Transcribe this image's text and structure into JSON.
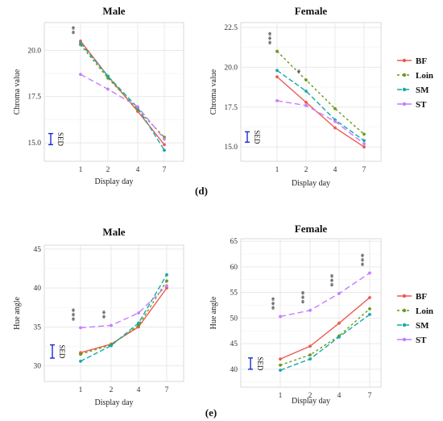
{
  "chart_data": [
    {
      "type": "line",
      "title": "Male",
      "xlabel": "Display day",
      "ylabel": "Chroma value",
      "categories": [
        "1",
        "2",
        "4",
        "7"
      ],
      "ylim": [
        14,
        21.5
      ],
      "yticks": [
        "15.0",
        "17.5",
        "20.0"
      ],
      "series": [
        {
          "name": "BF",
          "values": [
            20.5,
            18.6,
            16.7,
            14.9
          ]
        },
        {
          "name": "Loin",
          "values": [
            20.3,
            18.5,
            16.8,
            15.3
          ]
        },
        {
          "name": "SM",
          "values": [
            20.4,
            18.6,
            16.9,
            14.6
          ]
        },
        {
          "name": "ST",
          "values": [
            18.7,
            17.9,
            16.95,
            15.2
          ]
        }
      ],
      "sed_label": "SED",
      "sed_range": [
        14.9,
        15.5
      ],
      "stars": [
        {
          "x": "1",
          "text": "**"
        }
      ]
    },
    {
      "type": "line",
      "title": "Female",
      "xlabel": "Display day",
      "ylabel": "Chroma value",
      "categories": [
        "1",
        "2",
        "4",
        "7"
      ],
      "ylim": [
        14.1,
        22.8
      ],
      "yticks": [
        "15.0",
        "17.5",
        "20.0",
        "22.5"
      ],
      "series": [
        {
          "name": "BF",
          "values": [
            19.4,
            17.8,
            16.2,
            15.0
          ]
        },
        {
          "name": "Loin",
          "values": [
            21.0,
            19.2,
            17.4,
            15.8
          ]
        },
        {
          "name": "SM",
          "values": [
            19.8,
            18.5,
            16.7,
            15.4
          ]
        },
        {
          "name": "ST",
          "values": [
            17.9,
            17.6,
            16.6,
            15.2
          ]
        }
      ],
      "sed_label": "SED",
      "sed_range": [
        15.3,
        15.95
      ],
      "stars": [
        {
          "x": "1",
          "text": "***"
        },
        {
          "x": "2",
          "text": "*"
        }
      ]
    },
    {
      "type": "line",
      "title": "Male",
      "xlabel": "Display day",
      "ylabel": "Hue angle",
      "categories": [
        "1",
        "2",
        "4",
        "7"
      ],
      "ylim": [
        28,
        45.5
      ],
      "yticks": [
        "30",
        "35",
        "40",
        "45"
      ],
      "series": [
        {
          "name": "BF",
          "values": [
            31.7,
            32.8,
            35.0,
            40.0
          ]
        },
        {
          "name": "Loin",
          "values": [
            31.5,
            32.7,
            35.2,
            40.9
          ]
        },
        {
          "name": "SM",
          "values": [
            30.6,
            32.6,
            35.5,
            41.7
          ]
        },
        {
          "name": "ST",
          "values": [
            34.9,
            35.2,
            36.8,
            40.3
          ]
        }
      ],
      "sed_label": "SED",
      "sed_range": [
        31.0,
        32.7
      ],
      "stars": [
        {
          "x": "1",
          "text": "***"
        },
        {
          "x": "2",
          "text": "**"
        }
      ]
    },
    {
      "type": "line",
      "title": "Female",
      "xlabel": "Display day",
      "ylabel": "Hue angle",
      "categories": [
        "1",
        "2",
        "4",
        "7"
      ],
      "ylim": [
        36.5,
        65.5
      ],
      "yticks": [
        "40",
        "45",
        "50",
        "55",
        "60",
        "65"
      ],
      "series": [
        {
          "name": "BF",
          "values": [
            42.0,
            44.5,
            49.0,
            54.0
          ]
        },
        {
          "name": "Loin",
          "values": [
            40.8,
            42.8,
            46.5,
            51.8
          ]
        },
        {
          "name": "SM",
          "values": [
            39.8,
            42.0,
            46.3,
            50.7
          ]
        },
        {
          "name": "ST",
          "values": [
            50.3,
            51.5,
            54.8,
            58.8
          ]
        }
      ],
      "sed_label": "SED",
      "sed_range": [
        40.0,
        42.2
      ],
      "stars": [
        {
          "x": "1",
          "text": "***"
        },
        {
          "x": "2",
          "text": "***"
        },
        {
          "x": "4",
          "text": "***"
        },
        {
          "x": "7",
          "text": "***"
        }
      ]
    }
  ],
  "legend": {
    "items": [
      {
        "name": "BF",
        "color": "#ee5a50",
        "dash": ""
      },
      {
        "name": "Loin",
        "color": "#6b9a1a",
        "dash": "3,3"
      },
      {
        "name": "SM",
        "color": "#16a8a8",
        "dash": "6,3"
      },
      {
        "name": "ST",
        "color": "#c77cff",
        "dash": "7,4"
      }
    ]
  },
  "colors": {
    "sed": "#1a2bcf",
    "star": "#555555"
  },
  "panel_labels": [
    "(d)",
    "(e)"
  ]
}
